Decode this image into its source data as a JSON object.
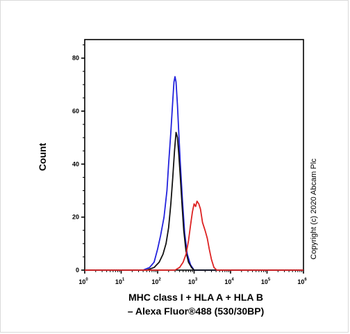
{
  "chart_data": {
    "type": "line",
    "ylabel": "Count",
    "xlabel_line1": "MHC class I + HLA A + HLA B",
    "xlabel_line2": "– Alexa Fluor®488 (530/30BP)",
    "copyright": "Copyright (c) 2020 Abcam Plc",
    "x_scale": "log",
    "xlim": [
      1,
      1000000
    ],
    "ylim": [
      0,
      87
    ],
    "y_ticks": [
      0,
      20,
      40,
      60,
      80
    ],
    "x_tick_labels": [
      {
        "base": "10",
        "exp": "0"
      },
      {
        "base": "10",
        "exp": "1"
      },
      {
        "base": "10",
        "exp": "2"
      },
      {
        "base": "10",
        "exp": "3"
      },
      {
        "base": "10",
        "exp": "4"
      },
      {
        "base": "10",
        "exp": "5"
      },
      {
        "base": "10",
        "exp": "6"
      }
    ],
    "series": [
      {
        "color": "#2222dd",
        "points": [
          [
            1,
            0
          ],
          [
            40,
            0
          ],
          [
            60,
            1
          ],
          [
            80,
            3
          ],
          [
            100,
            8
          ],
          [
            120,
            13
          ],
          [
            150,
            20
          ],
          [
            180,
            30
          ],
          [
            200,
            40
          ],
          [
            230,
            52
          ],
          [
            260,
            64
          ],
          [
            280,
            71
          ],
          [
            300,
            73
          ],
          [
            320,
            71
          ],
          [
            350,
            62
          ],
          [
            380,
            52
          ],
          [
            420,
            40
          ],
          [
            480,
            26
          ],
          [
            550,
            14
          ],
          [
            650,
            6
          ],
          [
            800,
            2
          ],
          [
            1000,
            0
          ],
          [
            1000000,
            0
          ]
        ]
      },
      {
        "color": "#111111",
        "points": [
          [
            1,
            0
          ],
          [
            50,
            0
          ],
          [
            80,
            1
          ],
          [
            110,
            3
          ],
          [
            140,
            6
          ],
          [
            170,
            10
          ],
          [
            200,
            16
          ],
          [
            230,
            25
          ],
          [
            260,
            35
          ],
          [
            290,
            45
          ],
          [
            320,
            52
          ],
          [
            350,
            50
          ],
          [
            380,
            44
          ],
          [
            420,
            35
          ],
          [
            470,
            24
          ],
          [
            520,
            15
          ],
          [
            600,
            7
          ],
          [
            700,
            3
          ],
          [
            850,
            1
          ],
          [
            1000,
            0
          ],
          [
            1000000,
            0
          ]
        ]
      },
      {
        "color": "#dd2222",
        "points": [
          [
            1,
            0
          ],
          [
            300,
            0
          ],
          [
            400,
            1
          ],
          [
            500,
            3
          ],
          [
            600,
            6
          ],
          [
            700,
            11
          ],
          [
            800,
            17
          ],
          [
            900,
            22
          ],
          [
            1000,
            25
          ],
          [
            1100,
            24
          ],
          [
            1200,
            26
          ],
          [
            1350,
            25
          ],
          [
            1500,
            23
          ],
          [
            1700,
            18
          ],
          [
            2000,
            15
          ],
          [
            2300,
            12
          ],
          [
            2600,
            8
          ],
          [
            3000,
            4
          ],
          [
            3500,
            1
          ],
          [
            4200,
            0
          ],
          [
            1000000,
            0
          ]
        ]
      }
    ]
  }
}
